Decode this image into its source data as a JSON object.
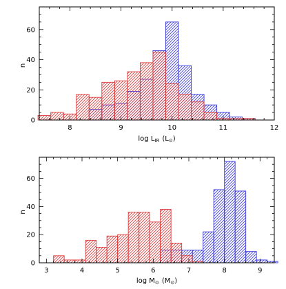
{
  "chart_data": [
    {
      "type": "bar",
      "subtype": "histogram",
      "xlabel": "log L",
      "xlabel_sub": "IR",
      "xlabel_unit": "(L",
      "xlabel_unit_sub": "⊙",
      "xlabel_unit_close": ")",
      "ylabel": "n",
      "xlim": [
        7.4,
        12.0
      ],
      "ylim": [
        0,
        75
      ],
      "xticks": [
        8,
        9,
        10,
        11,
        12
      ],
      "yticks": [
        0,
        20,
        40,
        60
      ],
      "bin_width": 0.25,
      "grid": false,
      "series": [
        {
          "color": "#3a3adc",
          "hatch": "diagonal",
          "bins": [
            {
              "x": 8.5,
              "y": 7
            },
            {
              "x": 8.75,
              "y": 10
            },
            {
              "x": 9.0,
              "y": 11
            },
            {
              "x": 9.25,
              "y": 19
            },
            {
              "x": 9.5,
              "y": 27
            },
            {
              "x": 9.75,
              "y": 46
            },
            {
              "x": 10.0,
              "y": 65
            },
            {
              "x": 10.25,
              "y": 36
            },
            {
              "x": 10.5,
              "y": 17
            },
            {
              "x": 10.75,
              "y": 10
            },
            {
              "x": 11.0,
              "y": 5
            },
            {
              "x": 11.25,
              "y": 2
            },
            {
              "x": 11.5,
              "y": 1
            }
          ]
        },
        {
          "color": "#dc3a3a",
          "hatch": "diagonal",
          "bins": [
            {
              "x": 7.5,
              "y": 3
            },
            {
              "x": 7.75,
              "y": 5
            },
            {
              "x": 8.0,
              "y": 4
            },
            {
              "x": 8.25,
              "y": 17
            },
            {
              "x": 8.5,
              "y": 15
            },
            {
              "x": 8.75,
              "y": 25
            },
            {
              "x": 9.0,
              "y": 26
            },
            {
              "x": 9.25,
              "y": 32
            },
            {
              "x": 9.5,
              "y": 38
            },
            {
              "x": 9.75,
              "y": 45
            },
            {
              "x": 10.0,
              "y": 24
            },
            {
              "x": 10.25,
              "y": 17
            },
            {
              "x": 10.5,
              "y": 12
            },
            {
              "x": 10.75,
              "y": 5
            },
            {
              "x": 11.0,
              "y": 1
            },
            {
              "x": 11.25,
              "y": 1
            },
            {
              "x": 11.5,
              "y": 1
            }
          ]
        }
      ]
    },
    {
      "type": "bar",
      "subtype": "histogram",
      "xlabel": "log M",
      "xlabel_sub": "⊙",
      "xlabel_unit": "(M",
      "xlabel_unit_sub": "⊙",
      "xlabel_unit_close": ")",
      "ylabel": "n",
      "xlim": [
        2.8,
        9.4
      ],
      "ylim": [
        0,
        75
      ],
      "xticks": [
        3,
        4,
        5,
        6,
        7,
        8,
        9
      ],
      "yticks": [
        0,
        20,
        40,
        60
      ],
      "bin_width": 0.3,
      "grid": false,
      "series": [
        {
          "color": "#3a3adc",
          "hatch": "diagonal",
          "bins": [
            {
              "x": 6.35,
              "y": 9
            },
            {
              "x": 6.65,
              "y": 9
            },
            {
              "x": 6.95,
              "y": 9
            },
            {
              "x": 7.25,
              "y": 9
            },
            {
              "x": 7.55,
              "y": 22
            },
            {
              "x": 7.85,
              "y": 52
            },
            {
              "x": 8.15,
              "y": 72
            },
            {
              "x": 8.45,
              "y": 51
            },
            {
              "x": 8.75,
              "y": 8
            },
            {
              "x": 9.05,
              "y": 2
            },
            {
              "x": 9.35,
              "y": 1
            }
          ]
        },
        {
          "color": "#dc3a3a",
          "hatch": "diagonal",
          "bins": [
            {
              "x": 3.35,
              "y": 5
            },
            {
              "x": 3.65,
              "y": 2
            },
            {
              "x": 3.95,
              "y": 2
            },
            {
              "x": 4.25,
              "y": 16
            },
            {
              "x": 4.55,
              "y": 11
            },
            {
              "x": 4.85,
              "y": 19
            },
            {
              "x": 5.15,
              "y": 20
            },
            {
              "x": 5.45,
              "y": 36
            },
            {
              "x": 5.75,
              "y": 36
            },
            {
              "x": 6.05,
              "y": 29
            },
            {
              "x": 6.35,
              "y": 38
            },
            {
              "x": 6.65,
              "y": 14
            },
            {
              "x": 6.95,
              "y": 5
            },
            {
              "x": 7.25,
              "y": 1
            }
          ]
        }
      ]
    }
  ]
}
